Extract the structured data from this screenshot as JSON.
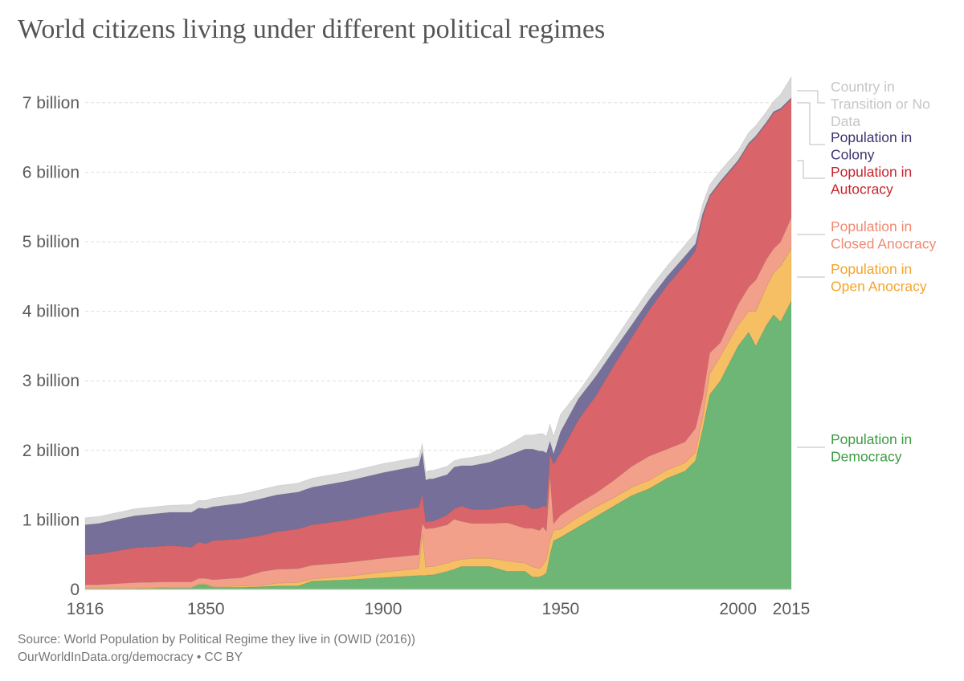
{
  "title": "World citizens living under different political regimes",
  "footer": {
    "source": "Source: World Population by Political Regime they live in (OWID (2016))",
    "license": "OurWorldInData.org/democracy • CC BY"
  },
  "chart_data": {
    "type": "area",
    "stacked": true,
    "title": "World citizens living under different political regimes",
    "xlabel": "",
    "ylabel": "",
    "xlim": [
      1816,
      2015
    ],
    "ylim": [
      0,
      7.4
    ],
    "y_unit": "billion",
    "grid": true,
    "x_ticks": [
      {
        "value": 1816,
        "label": "1816"
      },
      {
        "value": 1850,
        "label": "1850"
      },
      {
        "value": 1900,
        "label": "1900"
      },
      {
        "value": 1950,
        "label": "1950"
      },
      {
        "value": 2000,
        "label": "2000"
      },
      {
        "value": 2015,
        "label": "2015"
      }
    ],
    "y_ticks": [
      {
        "value": 0,
        "label": "0"
      },
      {
        "value": 1,
        "label": "1 billion"
      },
      {
        "value": 2,
        "label": "2 billion"
      },
      {
        "value": 3,
        "label": "3 billion"
      },
      {
        "value": 4,
        "label": "4 billion"
      },
      {
        "value": 5,
        "label": "5 billion"
      },
      {
        "value": 6,
        "label": "6 billion"
      },
      {
        "value": 7,
        "label": "7 billion"
      }
    ],
    "legend_placement": "right",
    "x": [
      1816,
      1820,
      1830,
      1840,
      1846,
      1848,
      1850,
      1852,
      1860,
      1866,
      1870,
      1876,
      1880,
      1890,
      1900,
      1910,
      1911,
      1912,
      1913,
      1914,
      1918,
      1920,
      1922,
      1925,
      1930,
      1935,
      1940,
      1942,
      1944,
      1945,
      1946,
      1947,
      1948,
      1950,
      1955,
      1960,
      1965,
      1970,
      1975,
      1980,
      1985,
      1988,
      1990,
      1992,
      1995,
      2000,
      2003,
      2005,
      2008,
      2010,
      2012,
      2015
    ],
    "series": [
      {
        "name": "Population in Democracy",
        "color": "#6db675",
        "values": [
          0.01,
          0.01,
          0.01,
          0.02,
          0.02,
          0.07,
          0.07,
          0.03,
          0.03,
          0.04,
          0.05,
          0.05,
          0.12,
          0.14,
          0.17,
          0.2,
          0.2,
          0.2,
          0.21,
          0.21,
          0.26,
          0.29,
          0.33,
          0.33,
          0.33,
          0.26,
          0.26,
          0.18,
          0.18,
          0.2,
          0.24,
          0.5,
          0.7,
          0.75,
          0.9,
          1.05,
          1.2,
          1.35,
          1.45,
          1.6,
          1.7,
          1.85,
          2.3,
          2.8,
          3.0,
          3.5,
          3.7,
          3.5,
          3.8,
          3.95,
          3.85,
          4.15
        ]
      },
      {
        "name": "Population in Open Anocracy",
        "color": "#f6bf64",
        "values": [
          0.01,
          0.01,
          0.01,
          0.01,
          0.01,
          0.01,
          0.01,
          0.01,
          0.02,
          0.02,
          0.04,
          0.05,
          0.03,
          0.05,
          0.08,
          0.1,
          0.6,
          0.12,
          0.12,
          0.12,
          0.12,
          0.12,
          0.1,
          0.12,
          0.12,
          0.15,
          0.12,
          0.15,
          0.12,
          0.15,
          0.2,
          0.2,
          0.15,
          0.12,
          0.14,
          0.14,
          0.12,
          0.12,
          0.12,
          0.12,
          0.12,
          0.12,
          0.15,
          0.3,
          0.35,
          0.3,
          0.3,
          0.5,
          0.55,
          0.6,
          0.8,
          0.75
        ]
      },
      {
        "name": "Population in Closed Anocracy",
        "color": "#f2a08a",
        "values": [
          0.05,
          0.05,
          0.08,
          0.08,
          0.08,
          0.08,
          0.08,
          0.1,
          0.12,
          0.2,
          0.2,
          0.2,
          0.2,
          0.2,
          0.2,
          0.2,
          0.15,
          0.55,
          0.55,
          0.55,
          0.55,
          0.6,
          0.55,
          0.5,
          0.5,
          0.55,
          0.5,
          0.55,
          0.55,
          0.55,
          0.4,
          0.95,
          0.1,
          0.2,
          0.2,
          0.2,
          0.25,
          0.3,
          0.35,
          0.3,
          0.3,
          0.35,
          0.3,
          0.3,
          0.2,
          0.3,
          0.35,
          0.45,
          0.4,
          0.35,
          0.35,
          0.45
        ]
      },
      {
        "name": "Population in Autocracy",
        "color": "#d9656b",
        "values": [
          0.43,
          0.44,
          0.5,
          0.52,
          0.5,
          0.52,
          0.5,
          0.56,
          0.56,
          0.52,
          0.54,
          0.57,
          0.58,
          0.61,
          0.65,
          0.68,
          0.43,
          0.1,
          0.1,
          0.1,
          0.14,
          0.15,
          0.22,
          0.2,
          0.2,
          0.24,
          0.34,
          0.28,
          0.32,
          0.3,
          0.35,
          0.3,
          0.85,
          0.9,
          1.2,
          1.4,
          1.65,
          1.85,
          2.1,
          2.35,
          2.55,
          2.55,
          2.6,
          2.25,
          2.3,
          2.05,
          2.05,
          2.05,
          1.95,
          1.95,
          1.9,
          1.7
        ]
      },
      {
        "name": "Population in Colony",
        "color": "#766f99",
        "values": [
          0.43,
          0.44,
          0.46,
          0.48,
          0.5,
          0.49,
          0.5,
          0.49,
          0.51,
          0.53,
          0.53,
          0.53,
          0.54,
          0.56,
          0.58,
          0.6,
          0.6,
          0.6,
          0.61,
          0.61,
          0.58,
          0.6,
          0.58,
          0.63,
          0.68,
          0.72,
          0.8,
          0.86,
          0.82,
          0.79,
          0.77,
          0.18,
          0.15,
          0.3,
          0.3,
          0.28,
          0.22,
          0.18,
          0.15,
          0.13,
          0.12,
          0.1,
          0.05,
          0.02,
          0.02,
          0.02,
          0.02,
          0.02,
          0.02,
          0.02,
          0.02,
          0.02
        ]
      },
      {
        "name": "Country in Transition or No Data",
        "color": "#d8d8d8",
        "values": [
          0.1,
          0.1,
          0.1,
          0.1,
          0.11,
          0.11,
          0.12,
          0.12,
          0.13,
          0.13,
          0.13,
          0.13,
          0.13,
          0.13,
          0.13,
          0.12,
          0.12,
          0.12,
          0.12,
          0.12,
          0.12,
          0.09,
          0.1,
          0.12,
          0.12,
          0.15,
          0.2,
          0.2,
          0.25,
          0.25,
          0.24,
          0.25,
          0.25,
          0.25,
          0.1,
          0.13,
          0.13,
          0.15,
          0.15,
          0.15,
          0.16,
          0.17,
          0.14,
          0.15,
          0.15,
          0.14,
          0.15,
          0.15,
          0.15,
          0.15,
          0.2,
          0.3
        ]
      }
    ]
  },
  "legend": [
    {
      "id": "transition",
      "lines": [
        "Country in",
        "Transition or No",
        "Data"
      ],
      "color": "#c6c6c6"
    },
    {
      "id": "colony",
      "lines": [
        "Population in",
        "Colony"
      ],
      "color": "#3d3470"
    },
    {
      "id": "autocracy",
      "lines": [
        "Population in",
        "Autocracy"
      ],
      "color": "#c8242c"
    },
    {
      "id": "closed-anocracy",
      "lines": [
        "Population in",
        "Closed Anocracy"
      ],
      "color": "#ef8a70"
    },
    {
      "id": "open-anocracy",
      "lines": [
        "Population in",
        "Open Anocracy"
      ],
      "color": "#f5a42b"
    },
    {
      "id": "democracy",
      "lines": [
        "Population in",
        "Democracy"
      ],
      "color": "#3d9c43"
    }
  ]
}
